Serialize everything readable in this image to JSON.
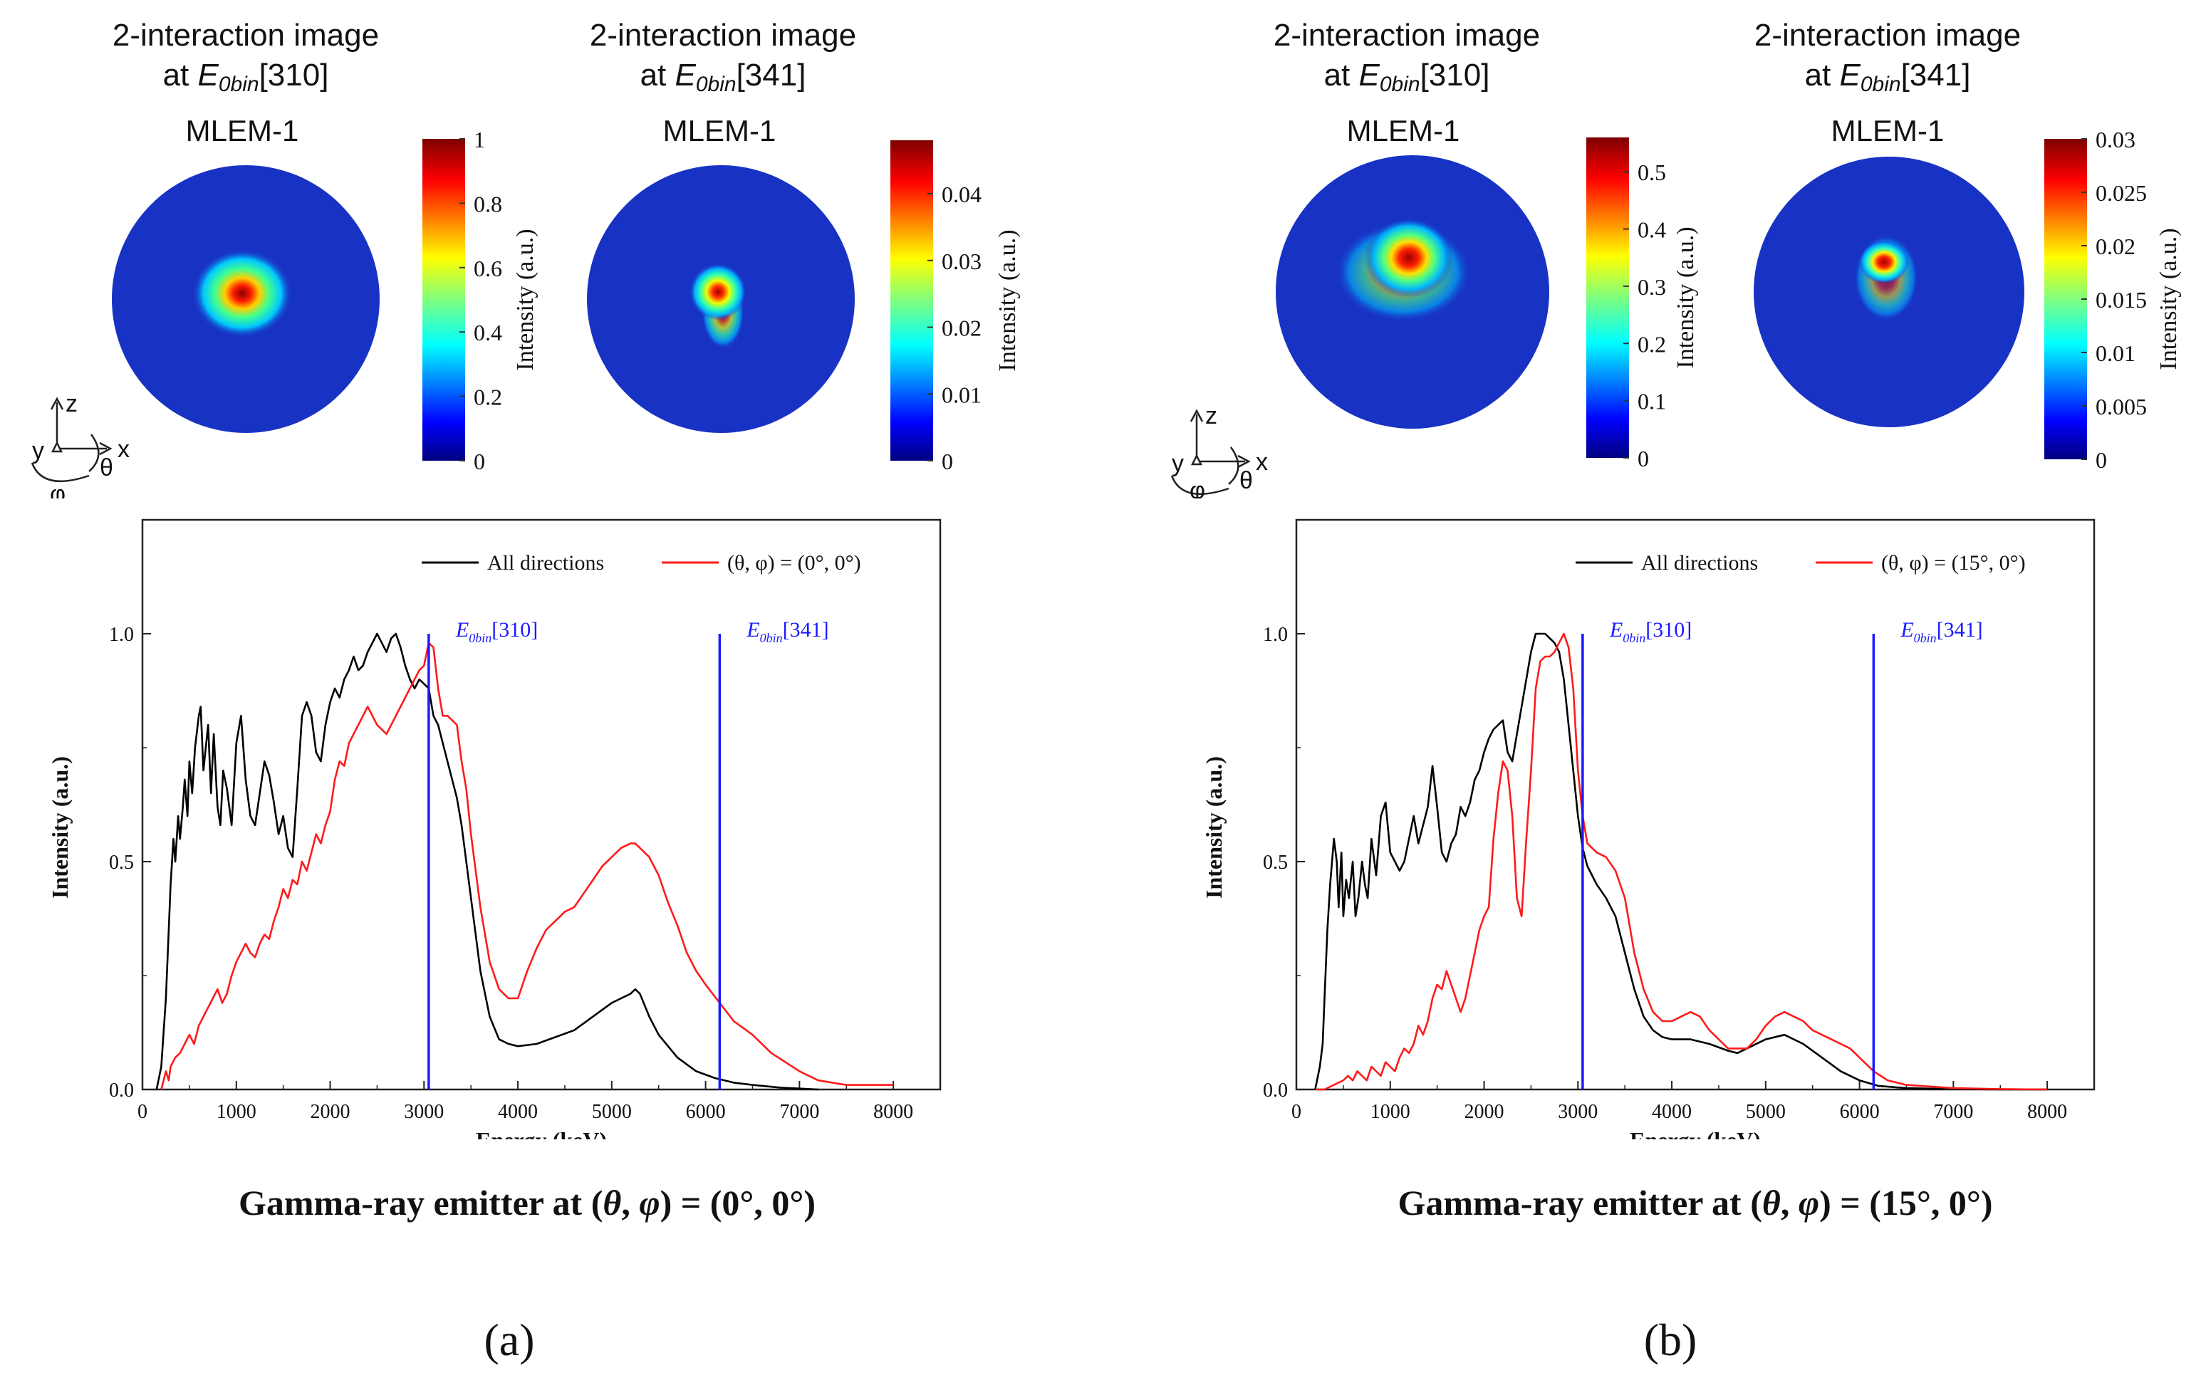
{
  "panels": [
    {
      "id": "a",
      "label": "(a)",
      "caption_prefix": "Gamma-ray emitter at (",
      "caption_theta": "θ",
      "caption_sep": ", ",
      "caption_phi": "φ",
      "caption_suffix": ") = (0°, 0°)",
      "images": [
        {
          "title_line1": "2-interaction image",
          "title_at": "at ",
          "title_E": "E",
          "title_sub": "0bin",
          "title_bin": "[310]",
          "method": "MLEM-1",
          "colorbar": {
            "label": "Intensity (a.u.)",
            "ticks": [
              "0",
              "0.2",
              "0.4",
              "0.6",
              "0.8",
              "1"
            ],
            "max": 1.0
          }
        },
        {
          "title_line1": "2-interaction image",
          "title_at": "at ",
          "title_E": "E",
          "title_sub": "0bin",
          "title_bin": "[341]",
          "method": "MLEM-1",
          "colorbar": {
            "label": "Intensity (a.u.)",
            "ticks": [
              "0",
              "0.01",
              "0.02",
              "0.03",
              "0.04"
            ],
            "max": 0.048
          }
        }
      ],
      "axes_icon": {
        "z": "z",
        "x": "x",
        "y": "y",
        "theta": "θ",
        "phi": "φ"
      }
    },
    {
      "id": "b",
      "label": "(b)",
      "caption_prefix": "Gamma-ray emitter at (",
      "caption_theta": "θ",
      "caption_sep": ", ",
      "caption_phi": "φ",
      "caption_suffix": ") = (15°, 0°)",
      "images": [
        {
          "title_line1": "2-interaction image",
          "title_at": "at ",
          "title_E": "E",
          "title_sub": "0bin",
          "title_bin": "[310]",
          "method": "MLEM-1",
          "colorbar": {
            "label": "Intensity (a.u.)",
            "ticks": [
              "0",
              "0.1",
              "0.2",
              "0.3",
              "0.4",
              "0.5"
            ],
            "max": 0.56
          }
        },
        {
          "title_line1": "2-interaction image",
          "title_at": "at ",
          "title_E": "E",
          "title_sub": "0bin",
          "title_bin": "[341]",
          "method": "MLEM-1",
          "colorbar": {
            "label": "Intensity (a.u.)",
            "ticks": [
              "0",
              "0.005",
              "0.01",
              "0.015",
              "0.02",
              "0.025",
              "0.03"
            ],
            "max": 0.03
          }
        }
      ],
      "axes_icon": {
        "z": "z",
        "x": "x",
        "y": "y",
        "theta": "θ",
        "phi": "φ"
      }
    }
  ],
  "chart_data": [
    {
      "type": "line",
      "panel": "a",
      "xlabel": "Energy (keV)",
      "ylabel": "Intensity (a.u.)",
      "xlim": [
        0,
        8500
      ],
      "ylim": [
        0,
        1.25
      ],
      "xticks": [
        0,
        1000,
        2000,
        3000,
        4000,
        5000,
        6000,
        7000,
        8000
      ],
      "yticks": [
        0.0,
        0.5,
        1.0
      ],
      "ytick_labels": [
        "0.0",
        "0.5",
        "1.0"
      ],
      "legend": {
        "position": "top",
        "entries": [
          {
            "name": "All directions",
            "color": "#000000"
          },
          {
            "name": "(θ, φ) = (0°, 0°)",
            "color": "#ff1a1a"
          }
        ]
      },
      "vlines": [
        {
          "x": 3050,
          "label_E": "E",
          "label_sub": "0bin",
          "label_bin": "[310]",
          "color": "#1a1aff"
        },
        {
          "x": 6150,
          "label_E": "E",
          "label_sub": "0bin",
          "label_bin": "[341]",
          "color": "#1a1aff"
        }
      ],
      "series": [
        {
          "name": "All directions",
          "color": "#000000",
          "x": [
            150,
            200,
            250,
            280,
            300,
            330,
            350,
            380,
            400,
            430,
            450,
            480,
            500,
            530,
            560,
            600,
            620,
            650,
            700,
            730,
            760,
            800,
            830,
            860,
            900,
            950,
            1000,
            1050,
            1100,
            1150,
            1200,
            1250,
            1300,
            1350,
            1400,
            1450,
            1500,
            1550,
            1600,
            1650,
            1700,
            1750,
            1800,
            1850,
            1900,
            1950,
            2000,
            2050,
            2100,
            2150,
            2200,
            2250,
            2300,
            2350,
            2400,
            2450,
            2500,
            2550,
            2600,
            2650,
            2700,
            2750,
            2800,
            2850,
            2900,
            2950,
            3000,
            3050,
            3100,
            3150,
            3200,
            3250,
            3300,
            3350,
            3400,
            3450,
            3500,
            3550,
            3600,
            3700,
            3800,
            3900,
            4000,
            4200,
            4400,
            4600,
            4800,
            5000,
            5100,
            5200,
            5250,
            5300,
            5400,
            5500,
            5700,
            5900,
            6100,
            6300,
            6500,
            6800,
            7000,
            7200
          ],
          "y": [
            0.0,
            0.05,
            0.2,
            0.35,
            0.45,
            0.55,
            0.5,
            0.6,
            0.55,
            0.62,
            0.68,
            0.6,
            0.72,
            0.65,
            0.75,
            0.82,
            0.84,
            0.7,
            0.8,
            0.65,
            0.78,
            0.62,
            0.58,
            0.7,
            0.66,
            0.58,
            0.76,
            0.82,
            0.68,
            0.6,
            0.58,
            0.65,
            0.72,
            0.69,
            0.63,
            0.56,
            0.6,
            0.53,
            0.51,
            0.66,
            0.82,
            0.85,
            0.82,
            0.74,
            0.72,
            0.8,
            0.85,
            0.88,
            0.86,
            0.9,
            0.92,
            0.95,
            0.92,
            0.93,
            0.96,
            0.98,
            1.0,
            0.98,
            0.96,
            0.99,
            1.0,
            0.97,
            0.93,
            0.9,
            0.88,
            0.9,
            0.89,
            0.88,
            0.82,
            0.8,
            0.76,
            0.72,
            0.68,
            0.64,
            0.58,
            0.5,
            0.42,
            0.34,
            0.26,
            0.16,
            0.11,
            0.1,
            0.095,
            0.1,
            0.115,
            0.13,
            0.16,
            0.19,
            0.2,
            0.21,
            0.22,
            0.21,
            0.16,
            0.12,
            0.07,
            0.04,
            0.025,
            0.015,
            0.01,
            0.004,
            0.002,
            0.0
          ]
        },
        {
          "name": "(θ, φ) = (0°, 0°)",
          "color": "#ff1a1a",
          "x": [
            200,
            250,
            280,
            300,
            350,
            400,
            450,
            500,
            550,
            600,
            650,
            700,
            750,
            800,
            850,
            900,
            950,
            1000,
            1050,
            1100,
            1150,
            1200,
            1250,
            1300,
            1350,
            1400,
            1450,
            1500,
            1550,
            1600,
            1650,
            1700,
            1750,
            1800,
            1850,
            1900,
            1950,
            2000,
            2050,
            2100,
            2150,
            2200,
            2250,
            2300,
            2400,
            2500,
            2600,
            2700,
            2800,
            2850,
            2900,
            2950,
            3000,
            3050,
            3100,
            3150,
            3200,
            3250,
            3300,
            3350,
            3400,
            3450,
            3500,
            3550,
            3600,
            3700,
            3800,
            3900,
            4000,
            4100,
            4200,
            4300,
            4400,
            4500,
            4600,
            4700,
            4800,
            4900,
            5000,
            5100,
            5200,
            5250,
            5300,
            5400,
            5500,
            5600,
            5700,
            5800,
            5900,
            6000,
            6150,
            6300,
            6500,
            6700,
            7000,
            7200,
            7500,
            8000
          ],
          "y": [
            0.0,
            0.04,
            0.02,
            0.05,
            0.07,
            0.08,
            0.1,
            0.12,
            0.1,
            0.14,
            0.16,
            0.18,
            0.2,
            0.22,
            0.19,
            0.21,
            0.25,
            0.28,
            0.3,
            0.32,
            0.3,
            0.29,
            0.32,
            0.34,
            0.33,
            0.37,
            0.4,
            0.44,
            0.42,
            0.46,
            0.45,
            0.5,
            0.48,
            0.52,
            0.56,
            0.54,
            0.58,
            0.61,
            0.68,
            0.72,
            0.71,
            0.76,
            0.78,
            0.8,
            0.84,
            0.8,
            0.78,
            0.82,
            0.86,
            0.88,
            0.9,
            0.92,
            0.93,
            0.98,
            0.97,
            0.88,
            0.82,
            0.82,
            0.81,
            0.8,
            0.72,
            0.66,
            0.56,
            0.48,
            0.4,
            0.28,
            0.22,
            0.2,
            0.2,
            0.26,
            0.31,
            0.35,
            0.37,
            0.39,
            0.4,
            0.43,
            0.46,
            0.49,
            0.51,
            0.53,
            0.54,
            0.54,
            0.53,
            0.51,
            0.47,
            0.41,
            0.36,
            0.3,
            0.26,
            0.23,
            0.19,
            0.15,
            0.12,
            0.08,
            0.04,
            0.02,
            0.01,
            0.01
          ]
        }
      ]
    },
    {
      "type": "line",
      "panel": "b",
      "xlabel": "Energy (keV)",
      "ylabel": "Intensity (a.u.)",
      "xlim": [
        0,
        8500
      ],
      "ylim": [
        0,
        1.25
      ],
      "xticks": [
        0,
        1000,
        2000,
        3000,
        4000,
        5000,
        6000,
        7000,
        8000
      ],
      "yticks": [
        0.0,
        0.5,
        1.0
      ],
      "ytick_labels": [
        "0.0",
        "0.5",
        "1.0"
      ],
      "legend": {
        "position": "top",
        "entries": [
          {
            "name": "All directions",
            "color": "#000000"
          },
          {
            "name": "(θ, φ) = (15°, 0°)",
            "color": "#ff1a1a"
          }
        ]
      },
      "vlines": [
        {
          "x": 3050,
          "label_E": "E",
          "label_sub": "0bin",
          "label_bin": "[310]",
          "color": "#1a1aff"
        },
        {
          "x": 6150,
          "label_E": "E",
          "label_sub": "0bin",
          "label_bin": "[341]",
          "color": "#1a1aff"
        }
      ],
      "series": [
        {
          "name": "All directions",
          "color": "#000000",
          "x": [
            200,
            250,
            280,
            300,
            330,
            360,
            400,
            430,
            450,
            480,
            500,
            530,
            560,
            600,
            630,
            660,
            700,
            730,
            760,
            800,
            850,
            900,
            950,
            1000,
            1050,
            1100,
            1150,
            1200,
            1250,
            1300,
            1350,
            1400,
            1450,
            1500,
            1550,
            1600,
            1650,
            1700,
            1750,
            1800,
            1850,
            1900,
            1950,
            2000,
            2050,
            2100,
            2150,
            2200,
            2250,
            2300,
            2350,
            2400,
            2450,
            2500,
            2550,
            2600,
            2650,
            2700,
            2750,
            2800,
            2850,
            2900,
            2950,
            3000,
            3050,
            3100,
            3200,
            3300,
            3400,
            3500,
            3600,
            3700,
            3800,
            3900,
            4000,
            4200,
            4400,
            4600,
            4700,
            4800,
            5000,
            5200,
            5400,
            5600,
            5800,
            6000,
            6200,
            6500,
            7000,
            7500,
            8000
          ],
          "y": [
            0.0,
            0.05,
            0.1,
            0.2,
            0.35,
            0.45,
            0.55,
            0.5,
            0.4,
            0.52,
            0.38,
            0.46,
            0.42,
            0.5,
            0.38,
            0.42,
            0.5,
            0.45,
            0.42,
            0.55,
            0.47,
            0.6,
            0.63,
            0.52,
            0.5,
            0.48,
            0.5,
            0.55,
            0.6,
            0.54,
            0.58,
            0.62,
            0.71,
            0.62,
            0.52,
            0.5,
            0.54,
            0.56,
            0.62,
            0.6,
            0.63,
            0.68,
            0.7,
            0.74,
            0.77,
            0.79,
            0.8,
            0.81,
            0.74,
            0.72,
            0.78,
            0.84,
            0.9,
            0.96,
            1.0,
            1.0,
            1.0,
            0.99,
            0.98,
            0.96,
            0.9,
            0.8,
            0.7,
            0.6,
            0.53,
            0.49,
            0.45,
            0.42,
            0.38,
            0.3,
            0.22,
            0.16,
            0.13,
            0.115,
            0.11,
            0.11,
            0.1,
            0.085,
            0.08,
            0.09,
            0.11,
            0.12,
            0.1,
            0.07,
            0.04,
            0.02,
            0.008,
            0.003,
            0.001,
            0.0,
            0.0
          ]
        },
        {
          "name": "(θ, φ) = (15°, 0°)",
          "color": "#ff1a1a",
          "x": [
            200,
            300,
            400,
            500,
            550,
            600,
            650,
            700,
            750,
            800,
            850,
            900,
            950,
            1000,
            1050,
            1100,
            1150,
            1200,
            1250,
            1300,
            1350,
            1400,
            1450,
            1500,
            1550,
            1600,
            1650,
            1700,
            1750,
            1800,
            1850,
            1900,
            1950,
            2000,
            2050,
            2100,
            2150,
            2200,
            2250,
            2300,
            2350,
            2400,
            2450,
            2500,
            2550,
            2600,
            2650,
            2700,
            2750,
            2800,
            2850,
            2900,
            2950,
            3000,
            3050,
            3100,
            3200,
            3300,
            3400,
            3500,
            3600,
            3700,
            3800,
            3900,
            4000,
            4100,
            4200,
            4300,
            4400,
            4600,
            4800,
            4900,
            5000,
            5100,
            5200,
            5300,
            5400,
            5500,
            5600,
            5700,
            5800,
            5900,
            6000,
            6150,
            6300,
            6500,
            7000,
            7500,
            8000
          ],
          "y": [
            0.0,
            0.0,
            0.01,
            0.02,
            0.03,
            0.02,
            0.04,
            0.03,
            0.02,
            0.05,
            0.04,
            0.03,
            0.06,
            0.05,
            0.04,
            0.07,
            0.09,
            0.08,
            0.1,
            0.14,
            0.12,
            0.15,
            0.2,
            0.23,
            0.22,
            0.26,
            0.23,
            0.2,
            0.17,
            0.2,
            0.25,
            0.3,
            0.35,
            0.38,
            0.4,
            0.55,
            0.65,
            0.72,
            0.7,
            0.6,
            0.42,
            0.38,
            0.55,
            0.7,
            0.88,
            0.94,
            0.95,
            0.95,
            0.96,
            0.98,
            1.0,
            0.97,
            0.88,
            0.7,
            0.6,
            0.54,
            0.52,
            0.51,
            0.48,
            0.42,
            0.3,
            0.22,
            0.17,
            0.15,
            0.15,
            0.16,
            0.17,
            0.16,
            0.13,
            0.09,
            0.09,
            0.11,
            0.14,
            0.16,
            0.17,
            0.16,
            0.15,
            0.13,
            0.12,
            0.11,
            0.1,
            0.09,
            0.07,
            0.04,
            0.02,
            0.01,
            0.003,
            0.001,
            0.0
          ]
        }
      ]
    }
  ]
}
